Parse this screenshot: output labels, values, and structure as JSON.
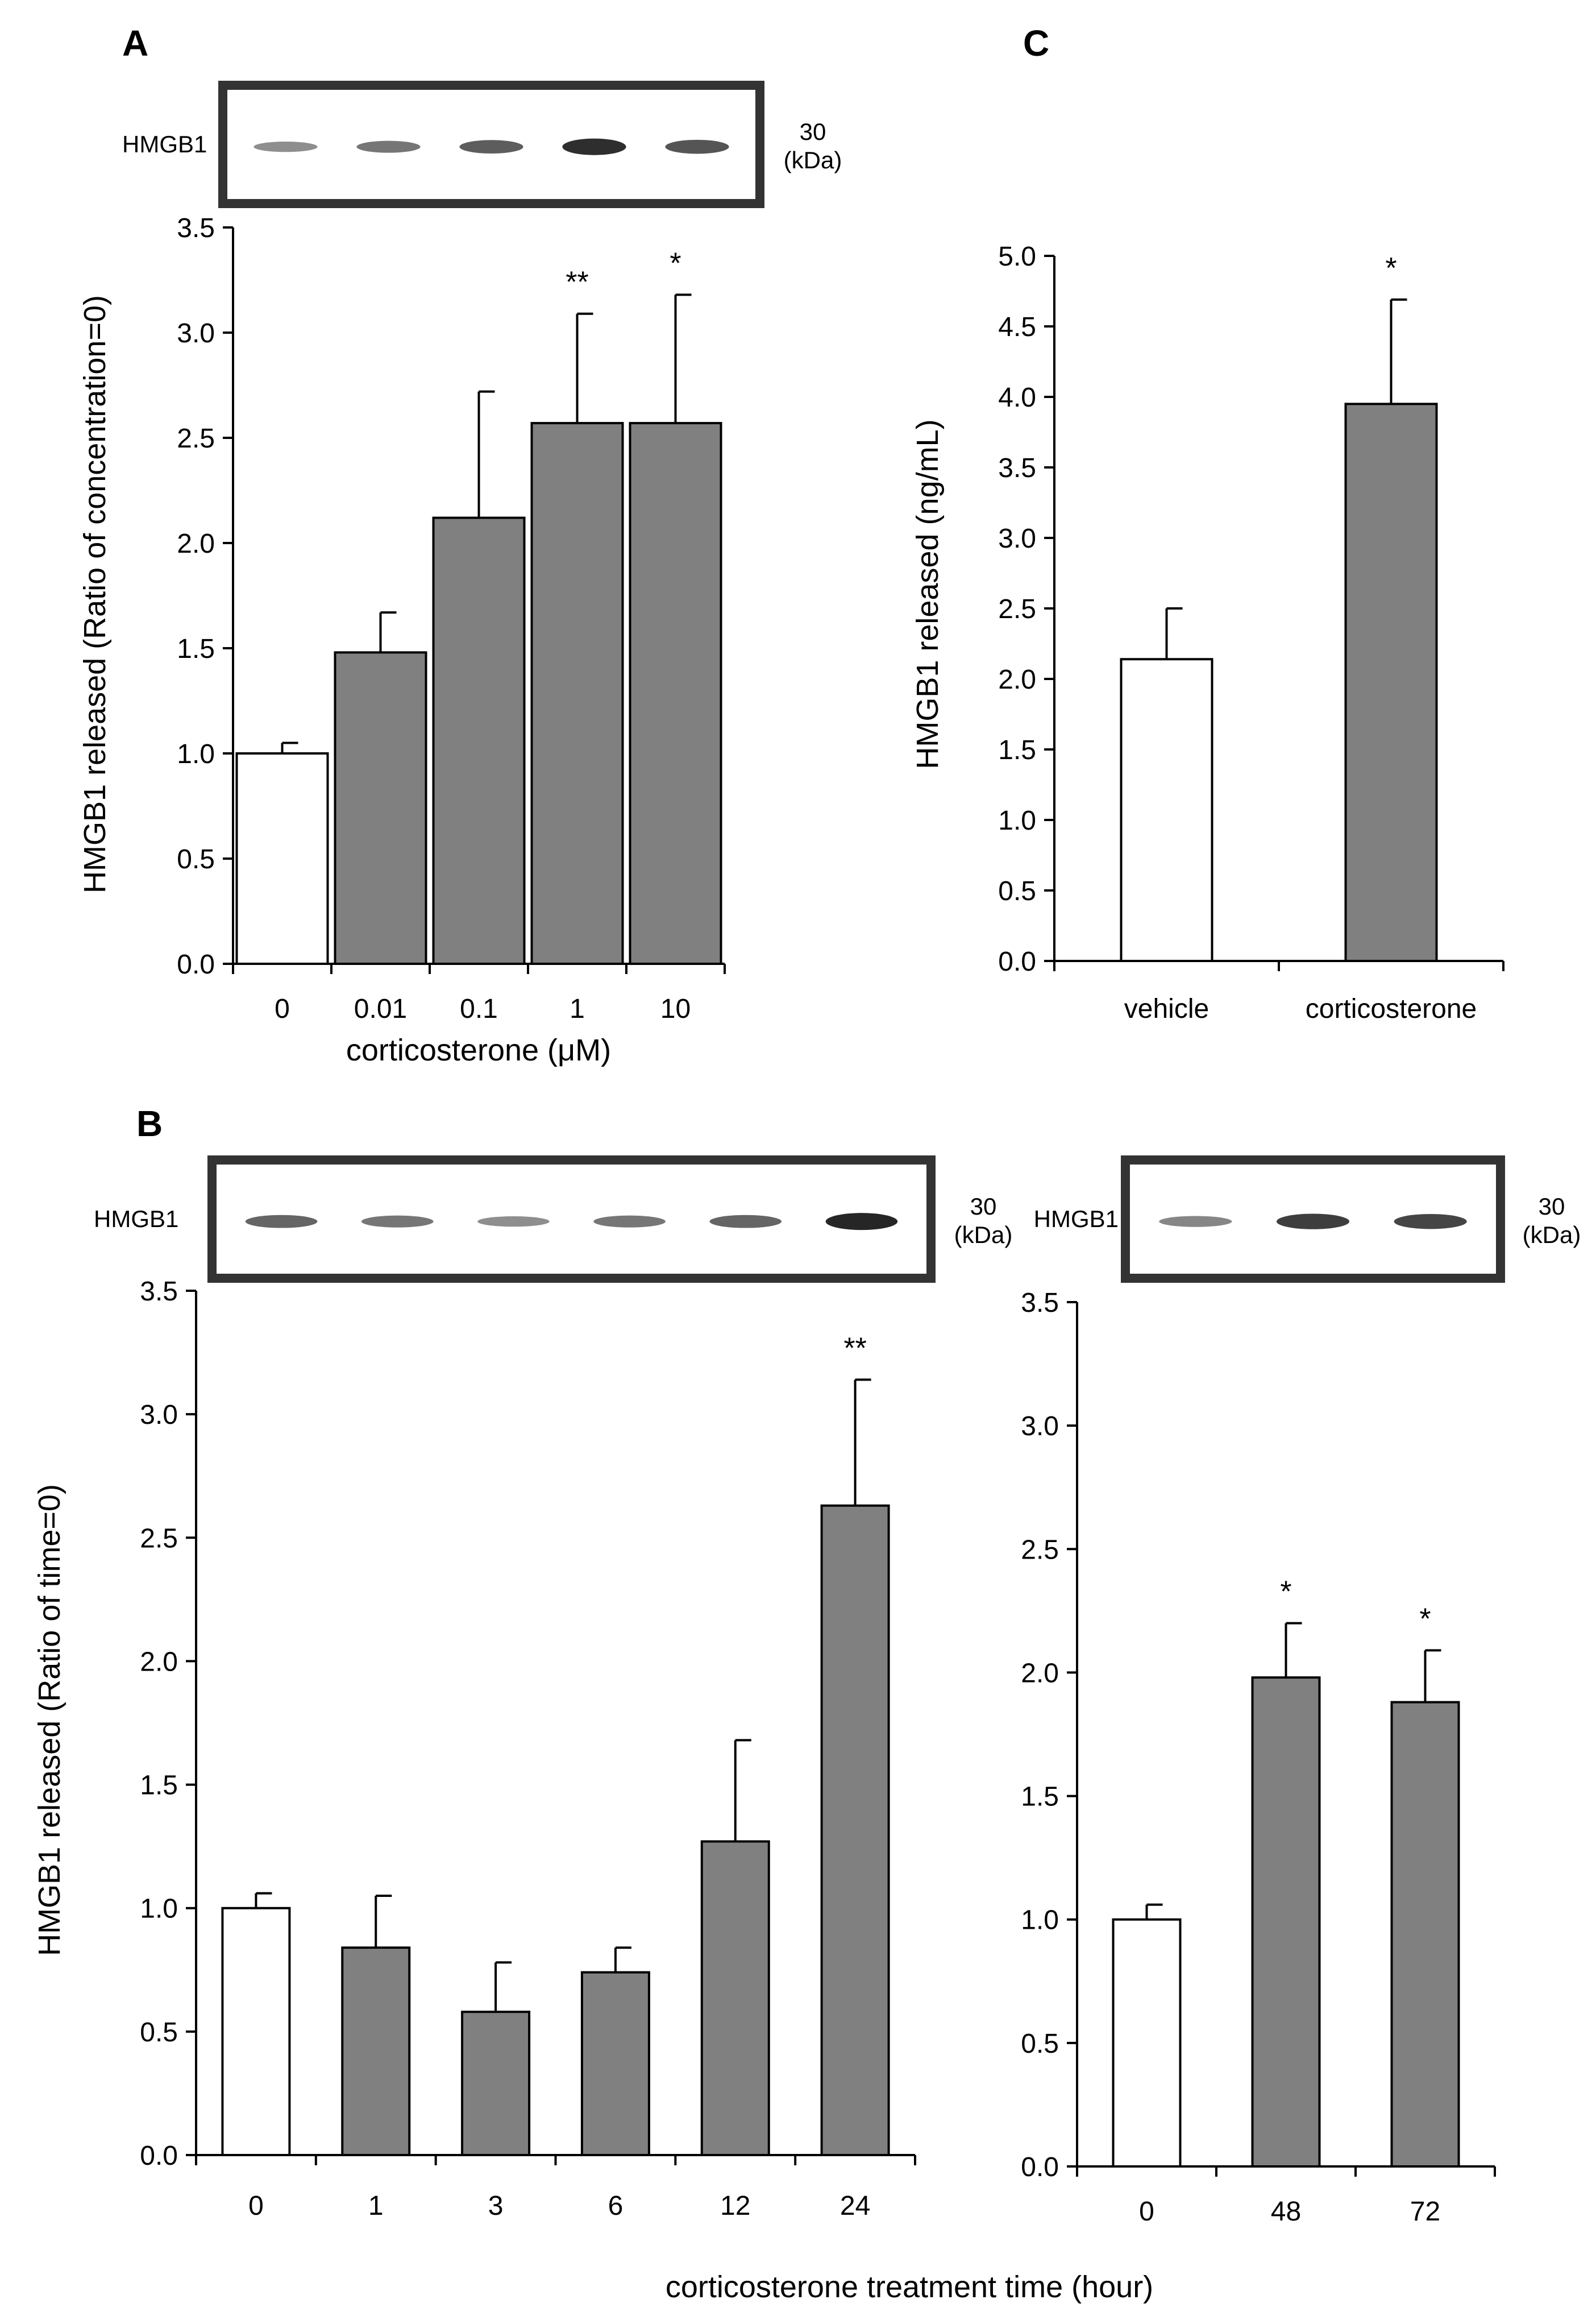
{
  "figure": {
    "units_kda": "(kDa)",
    "blot_marker": "30",
    "blot_label": "HMGB1"
  },
  "colors": {
    "control_fill": "#ffffff",
    "treated_fill": "#808080",
    "stroke": "#000000",
    "blot_frame": "#333333",
    "band": "#1a1a1a"
  },
  "chart_data": [
    {
      "panel": "A",
      "type": "bar",
      "title": "",
      "xlabel": "corticosterone (μM)",
      "ylabel": "HMGB1 released (Ratio of concentration=0)",
      "categories": [
        "0",
        "0.01",
        "0.1",
        "1",
        "10"
      ],
      "values": [
        1.0,
        1.48,
        2.12,
        2.57,
        2.57
      ],
      "errors": [
        0.05,
        0.19,
        0.6,
        0.52,
        0.61
      ],
      "significance": [
        "",
        "",
        "",
        "**",
        "*"
      ],
      "ylim": [
        0,
        3.5
      ],
      "yticks": [
        "0.0",
        "0.5",
        "1.0",
        "1.5",
        "2.0",
        "2.5",
        "3.0",
        "3.5"
      ],
      "blot_band_intensity": [
        0.35,
        0.5,
        0.65,
        0.95,
        0.7
      ]
    },
    {
      "panel": "C",
      "type": "bar",
      "title": "",
      "xlabel": "",
      "ylabel": "HMGB1 released (ng/mL)",
      "categories": [
        "vehicle",
        "corticosterone"
      ],
      "values": [
        2.14,
        3.95
      ],
      "errors": [
        0.36,
        0.74
      ],
      "significance": [
        "",
        "*"
      ],
      "ylim": [
        0,
        5.0
      ],
      "yticks": [
        "0.0",
        "0.5",
        "1.0",
        "1.5",
        "2.0",
        "2.5",
        "3.0",
        "3.5",
        "4.0",
        "4.5",
        "5.0"
      ]
    },
    {
      "panel": "B",
      "type": "bar",
      "title": "",
      "xlabel": "",
      "ylabel": "HMGB1 released (Ratio of time=0)",
      "categories": [
        "0",
        "1",
        "3",
        "6",
        "12",
        "24"
      ],
      "values": [
        1.0,
        0.84,
        0.58,
        0.74,
        1.27,
        2.63
      ],
      "errors": [
        0.06,
        0.21,
        0.2,
        0.1,
        0.41,
        0.51
      ],
      "significance": [
        "",
        "",
        "",
        "",
        "",
        "**"
      ],
      "ylim": [
        0,
        3.5
      ],
      "yticks": [
        "0.0",
        "0.5",
        "1.0",
        "1.5",
        "2.0",
        "2.5",
        "3.0",
        "3.5"
      ],
      "blot_band_intensity": [
        0.6,
        0.5,
        0.35,
        0.5,
        0.6,
        1.0
      ]
    },
    {
      "panel": "B2",
      "type": "bar",
      "title": "",
      "xlabel": "corticosterone treatment time (hour)",
      "ylabel": "",
      "categories": [
        "0",
        "48",
        "72"
      ],
      "values": [
        1.0,
        1.98,
        1.88
      ],
      "errors": [
        0.06,
        0.22,
        0.21
      ],
      "significance": [
        "",
        "*",
        "*"
      ],
      "ylim": [
        0,
        3.5
      ],
      "yticks": [
        "0.0",
        "0.5",
        "1.0",
        "1.5",
        "2.0",
        "2.5",
        "3.0",
        "3.5"
      ],
      "blot_band_intensity": [
        0.4,
        0.85,
        0.8
      ]
    }
  ],
  "panels": {
    "A": {
      "letter": "A"
    },
    "B": {
      "letter": "B"
    },
    "C": {
      "letter": "C"
    }
  }
}
